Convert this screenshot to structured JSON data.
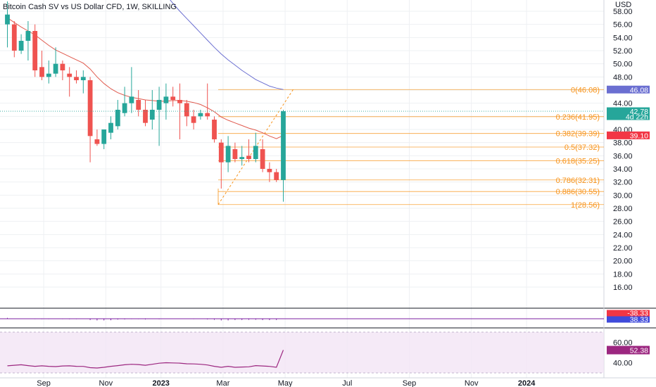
{
  "chart_data": {
    "type": "candlestick",
    "title": "Bitcoin Cash SV vs US Dollar CFD, 1W, SKILLING",
    "currency_label": "USD",
    "y_ticks": [
      "58.00",
      "56.00",
      "54.00",
      "52.00",
      "50.00",
      "48.00",
      "46.00",
      "44.00",
      "42.00",
      "40.00",
      "38.00",
      "36.00",
      "34.00",
      "32.00",
      "30.00",
      "28.00",
      "26.00",
      "24.00",
      "22.00",
      "20.00",
      "18.00",
      "16.00"
    ],
    "ylim": [
      14.6,
      59.4
    ],
    "x_ticks": [
      {
        "label": "Sep",
        "i": 2
      },
      {
        "label": "Nov",
        "i": 11
      },
      {
        "label": "2023",
        "i": 19
      },
      {
        "label": "Mar",
        "i": 28
      },
      {
        "label": "May",
        "i": 37
      },
      {
        "label": "Jul",
        "i": 46
      },
      {
        "label": "Sep",
        "i": 55
      },
      {
        "label": "Nov",
        "i": 64
      },
      {
        "label": "2024",
        "i": 72
      }
    ],
    "candles": [
      {
        "o": 56.0,
        "h": 59.5,
        "l": 52.5,
        "c": 57.5
      },
      {
        "o": 56.0,
        "h": 56.5,
        "l": 51.0,
        "c": 52.0
      },
      {
        "o": 52.0,
        "h": 54.5,
        "l": 51.5,
        "c": 53.5
      },
      {
        "o": 53.5,
        "h": 56.5,
        "l": 50.5,
        "c": 55.0
      },
      {
        "o": 55.0,
        "h": 56.0,
        "l": 48.0,
        "c": 49.0
      },
      {
        "o": 49.5,
        "h": 52.0,
        "l": 47.5,
        "c": 48.0
      },
      {
        "o": 48.0,
        "h": 50.5,
        "l": 47.0,
        "c": 48.5
      },
      {
        "o": 48.5,
        "h": 52.5,
        "l": 48.0,
        "c": 50.0
      },
      {
        "o": 50.0,
        "h": 50.5,
        "l": 47.5,
        "c": 49.0
      },
      {
        "o": 48.5,
        "h": 49.5,
        "l": 45.0,
        "c": 48.0
      },
      {
        "o": 48.0,
        "h": 49.0,
        "l": 47.0,
        "c": 47.5
      },
      {
        "o": 47.5,
        "h": 49.0,
        "l": 45.5,
        "c": 48.0
      },
      {
        "o": 47.5,
        "h": 48.0,
        "l": 35.0,
        "c": 39.0
      },
      {
        "o": 38.5,
        "h": 40.0,
        "l": 37.5,
        "c": 37.8
      },
      {
        "o": 37.8,
        "h": 40.0,
        "l": 37.0,
        "c": 40.0
      },
      {
        "o": 39.5,
        "h": 42.0,
        "l": 38.5,
        "c": 41.0
      },
      {
        "o": 40.5,
        "h": 44.5,
        "l": 40.0,
        "c": 43.0
      },
      {
        "o": 42.5,
        "h": 46.5,
        "l": 42.0,
        "c": 44.0
      },
      {
        "o": 44.0,
        "h": 49.5,
        "l": 42.5,
        "c": 45.0
      },
      {
        "o": 44.5,
        "h": 46.0,
        "l": 42.0,
        "c": 43.0
      },
      {
        "o": 43.0,
        "h": 44.5,
        "l": 40.5,
        "c": 41.0
      },
      {
        "o": 41.5,
        "h": 46.0,
        "l": 40.0,
        "c": 43.0
      },
      {
        "o": 43.0,
        "h": 46.5,
        "l": 37.5,
        "c": 44.5
      },
      {
        "o": 44.0,
        "h": 47.0,
        "l": 41.5,
        "c": 45.0
      },
      {
        "o": 45.0,
        "h": 46.5,
        "l": 43.5,
        "c": 44.5
      },
      {
        "o": 44.5,
        "h": 47.0,
        "l": 38.5,
        "c": 44.0
      },
      {
        "o": 44.0,
        "h": 44.5,
        "l": 40.5,
        "c": 42.0
      },
      {
        "o": 42.0,
        "h": 43.0,
        "l": 40.0,
        "c": 41.0
      },
      {
        "o": 42.0,
        "h": 43.0,
        "l": 41.5,
        "c": 42.5
      },
      {
        "o": 42.5,
        "h": 47.0,
        "l": 41.5,
        "c": 42.0
      },
      {
        "o": 41.5,
        "h": 42.0,
        "l": 38.0,
        "c": 38.5
      },
      {
        "o": 38.0,
        "h": 38.5,
        "l": 31.0,
        "c": 35.0
      },
      {
        "o": 35.0,
        "h": 39.0,
        "l": 33.5,
        "c": 37.5
      },
      {
        "o": 37.0,
        "h": 38.0,
        "l": 35.0,
        "c": 35.5
      },
      {
        "o": 35.5,
        "h": 37.5,
        "l": 34.5,
        "c": 35.8
      },
      {
        "o": 36.0,
        "h": 38.5,
        "l": 35.0,
        "c": 35.5
      },
      {
        "o": 35.5,
        "h": 39.5,
        "l": 35.0,
        "c": 37.5
      },
      {
        "o": 37.0,
        "h": 38.5,
        "l": 33.5,
        "c": 34.0
      },
      {
        "o": 34.0,
        "h": 35.0,
        "l": 32.0,
        "c": 33.5
      },
      {
        "o": 33.5,
        "h": 34.0,
        "l": 32.0,
        "c": 32.3
      },
      {
        "o": 32.3,
        "h": 43.0,
        "l": 29.0,
        "c": 42.78
      }
    ],
    "ma_fast": [
      57.0,
      56.3,
      55.6,
      55.0,
      54.4,
      53.6,
      52.8,
      52.1,
      51.6,
      51.1,
      50.6,
      50.1,
      49.2,
      48.0,
      47.0,
      46.2,
      45.6,
      45.2,
      44.9,
      44.7,
      44.5,
      44.4,
      44.3,
      44.3,
      44.4,
      44.4,
      44.3,
      44.1,
      43.8,
      43.3,
      42.7,
      41.9,
      41.4,
      41.0,
      40.6,
      40.2,
      39.9,
      39.5,
      39.0,
      38.6,
      39.1
    ],
    "ma_slow": [
      null,
      null,
      null,
      null,
      null,
      null,
      null,
      null,
      null,
      null,
      null,
      null,
      null,
      null,
      null,
      null,
      null,
      null,
      null,
      null,
      null,
      null,
      62.0,
      60.5,
      59.2,
      58.0,
      56.9,
      55.8,
      54.7,
      53.6,
      52.5,
      51.5,
      50.6,
      49.8,
      49.0,
      48.3,
      47.6,
      47.1,
      46.6,
      46.3,
      46.08
    ],
    "fib": [
      {
        "label": "0(46.08)",
        "v": 46.08
      },
      {
        "label": "0.236(41.95)",
        "v": 41.95
      },
      {
        "label": "0.382(39.39)",
        "v": 39.39
      },
      {
        "label": "0.5(37.32)",
        "v": 37.32
      },
      {
        "label": "0.618(35.25)",
        "v": 35.25
      },
      {
        "label": "0.786(32.31)",
        "v": 32.31
      },
      {
        "label": "0.886(30.55)",
        "v": 30.55
      },
      {
        "label": "1(28.56)",
        "v": 28.56
      }
    ],
    "price_badges": [
      {
        "label": "46.08",
        "v": 46.08,
        "color": "#6b6fd1"
      },
      {
        "label": "42.78",
        "v": 42.78,
        "color": "#26a69a",
        "extra": "4d 22h"
      },
      {
        "label": "39.10",
        "v": 39.1,
        "color": "#f23645"
      }
    ],
    "osc1": {
      "badges": [
        {
          "label": "-38.33",
          "color": "#f23645"
        },
        {
          "label": "38.33",
          "color": "#3f4bdb"
        }
      ],
      "values": [
        1,
        0,
        0,
        0,
        -0.5,
        -0.5,
        -0.5,
        -0.3,
        -0.5,
        -0.6,
        -0.5,
        -0.4,
        -1.5,
        -2,
        -2,
        -1.8,
        -1,
        -0.8,
        -0.5,
        -0.5,
        -0.8,
        -0.4,
        -0.6,
        -0.2,
        0,
        0,
        -0.2,
        -0.5,
        -0.3,
        -0.8,
        -1.2,
        -2,
        -2,
        -1.5,
        -1.5,
        -1.2,
        -1.2,
        -1.6,
        -1.6,
        -1.5,
        0
      ]
    },
    "rsi": {
      "ticks": [
        "60.00",
        "40.00"
      ],
      "badge": "52.38",
      "values": [
        37,
        37.5,
        38,
        37.2,
        36.5,
        37,
        36.5,
        36.2,
        36.8,
        37,
        36.5,
        36.4,
        35.2,
        34.8,
        35.5,
        36.5,
        37.2,
        38,
        38.5,
        38.2,
        37.5,
        38.5,
        39.5,
        40,
        39.8,
        39.6,
        39,
        38.8,
        38.5,
        37.8,
        36.5,
        35.5,
        36.5,
        35.5,
        35.8,
        36,
        37.2,
        36.8,
        36.4,
        35.5,
        52.38
      ]
    }
  }
}
